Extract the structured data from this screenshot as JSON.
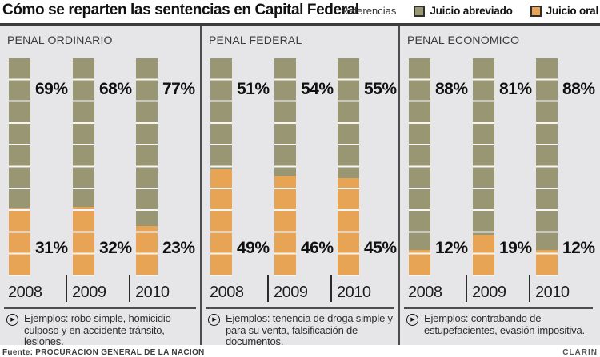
{
  "header": {
    "title": "Cómo se reparten las sentencias en Capital Federal",
    "legend_caption": "Referencias",
    "legend": [
      {
        "label": "Juicio abreviado",
        "color": "#999673"
      },
      {
        "label": "Juicio oral",
        "color": "#e8a455"
      }
    ]
  },
  "colors": {
    "abreviado": "#999673",
    "oral": "#e8a455",
    "panel_background": "#e6e6e8",
    "rule": "#3d3d3d"
  },
  "panels": [
    {
      "title": "PENAL ORDINARIO",
      "years": [
        "2008",
        "2009",
        "2010"
      ],
      "abreviado_labels": [
        "69%",
        "68%",
        "77%"
      ],
      "oral_labels": [
        "31%",
        "32%",
        "23%"
      ],
      "note": "Ejemplos: robo simple, homicidio culposo y en accidente tránsito, lesiones."
    },
    {
      "title": "PENAL FEDERAL",
      "years": [
        "2008",
        "2009",
        "2010"
      ],
      "abreviado_labels": [
        "51%",
        "54%",
        "55%"
      ],
      "oral_labels": [
        "49%",
        "46%",
        "45%"
      ],
      "note": "Ejemplos: tenencia de droga simple y para su venta, falsificación de documentos."
    },
    {
      "title": "PENAL ECONOMICO",
      "years": [
        "2008",
        "2009",
        "2010"
      ],
      "abreviado_labels": [
        "88%",
        "81%",
        "88%"
      ],
      "oral_labels": [
        "12%",
        "19%",
        "12%"
      ],
      "note": "Ejemplos: contrabando de estupefacientes, evasión impositiva."
    }
  ],
  "chart_data": [
    {
      "type": "bar",
      "stacked": true,
      "title": "PENAL ORDINARIO",
      "categories": [
        "2008",
        "2009",
        "2010"
      ],
      "series": [
        {
          "name": "Juicio abreviado",
          "values": [
            69,
            68,
            77
          ]
        },
        {
          "name": "Juicio oral",
          "values": [
            31,
            32,
            23
          ]
        }
      ],
      "ylim": [
        0,
        100
      ],
      "unit": "%",
      "grid": "10% white block divisions on bars",
      "legend_position": "top-right of page"
    },
    {
      "type": "bar",
      "stacked": true,
      "title": "PENAL FEDERAL",
      "categories": [
        "2008",
        "2009",
        "2010"
      ],
      "series": [
        {
          "name": "Juicio abreviado",
          "values": [
            51,
            54,
            55
          ]
        },
        {
          "name": "Juicio oral",
          "values": [
            49,
            46,
            45
          ]
        }
      ],
      "ylim": [
        0,
        100
      ],
      "unit": "%"
    },
    {
      "type": "bar",
      "stacked": true,
      "title": "PENAL ECONOMICO",
      "categories": [
        "2008",
        "2009",
        "2010"
      ],
      "series": [
        {
          "name": "Juicio abreviado",
          "values": [
            88,
            81,
            88
          ]
        },
        {
          "name": "Juicio oral",
          "values": [
            12,
            19,
            12
          ]
        }
      ],
      "ylim": [
        0,
        100
      ],
      "unit": "%"
    }
  ],
  "footer": {
    "source": "Fuente: PROCURACION GENERAL DE LA NACION",
    "brand": "CLARIN"
  }
}
